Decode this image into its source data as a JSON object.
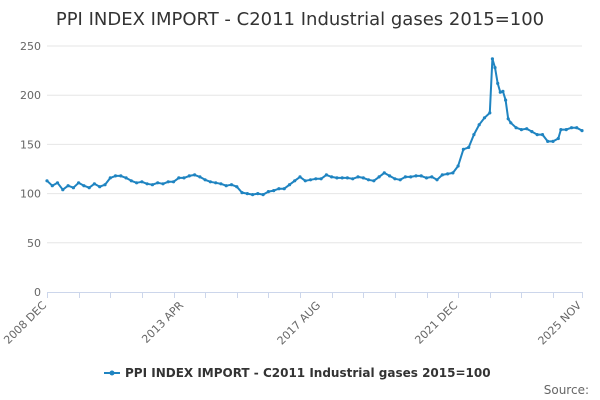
{
  "chart_data": {
    "type": "line",
    "title": "PPI INDEX IMPORT - C2011 Industrial gases 2015=100",
    "xlabel": "",
    "ylabel": "",
    "ylim": [
      0,
      250
    ],
    "y_ticks": [
      0,
      50,
      100,
      150,
      200,
      250
    ],
    "x_range": [
      "2008-12",
      "2025-11"
    ],
    "x_tick_labels": [
      {
        "date": "2008-12",
        "label": "2008 DEC"
      },
      {
        "date": "2013-04",
        "label": "2013 APR"
      },
      {
        "date": "2017-08",
        "label": "2017 AUG"
      },
      {
        "date": "2021-12",
        "label": "2021 DEC"
      },
      {
        "date": "2025-11",
        "label": "2025 NOV"
      }
    ],
    "grid": "horizontal",
    "legend_position": "bottom",
    "series": [
      {
        "name": "PPI INDEX IMPORT - C2011 Industrial gases 2015=100",
        "color": "#1f84c1",
        "points": [
          [
            "2008-12",
            113
          ],
          [
            "2009-02",
            108
          ],
          [
            "2009-04",
            111
          ],
          [
            "2009-06",
            104
          ],
          [
            "2009-08",
            108
          ],
          [
            "2009-10",
            106
          ],
          [
            "2009-12",
            111
          ],
          [
            "2010-02",
            108
          ],
          [
            "2010-04",
            106
          ],
          [
            "2010-06",
            110
          ],
          [
            "2010-08",
            107
          ],
          [
            "2010-10",
            109
          ],
          [
            "2010-12",
            116
          ],
          [
            "2011-02",
            118
          ],
          [
            "2011-04",
            118
          ],
          [
            "2011-06",
            116
          ],
          [
            "2011-08",
            113
          ],
          [
            "2011-10",
            111
          ],
          [
            "2011-12",
            112
          ],
          [
            "2012-02",
            110
          ],
          [
            "2012-04",
            109
          ],
          [
            "2012-06",
            111
          ],
          [
            "2012-08",
            110
          ],
          [
            "2012-10",
            112
          ],
          [
            "2012-12",
            112
          ],
          [
            "2013-02",
            116
          ],
          [
            "2013-04",
            116
          ],
          [
            "2013-06",
            118
          ],
          [
            "2013-08",
            119
          ],
          [
            "2013-10",
            117
          ],
          [
            "2013-12",
            114
          ],
          [
            "2014-02",
            112
          ],
          [
            "2014-04",
            111
          ],
          [
            "2014-06",
            110
          ],
          [
            "2014-08",
            108
          ],
          [
            "2014-10",
            109
          ],
          [
            "2014-12",
            107
          ],
          [
            "2015-02",
            101
          ],
          [
            "2015-04",
            100
          ],
          [
            "2015-06",
            99
          ],
          [
            "2015-08",
            100
          ],
          [
            "2015-10",
            99
          ],
          [
            "2015-12",
            102
          ],
          [
            "2016-02",
            103
          ],
          [
            "2016-04",
            105
          ],
          [
            "2016-06",
            105
          ],
          [
            "2016-08",
            109
          ],
          [
            "2016-10",
            113
          ],
          [
            "2016-12",
            117
          ],
          [
            "2017-02",
            113
          ],
          [
            "2017-04",
            114
          ],
          [
            "2017-06",
            115
          ],
          [
            "2017-08",
            115
          ],
          [
            "2017-10",
            119
          ],
          [
            "2017-12",
            117
          ],
          [
            "2018-02",
            116
          ],
          [
            "2018-04",
            116
          ],
          [
            "2018-06",
            116
          ],
          [
            "2018-08",
            115
          ],
          [
            "2018-10",
            117
          ],
          [
            "2018-12",
            116
          ],
          [
            "2019-02",
            114
          ],
          [
            "2019-04",
            113
          ],
          [
            "2019-06",
            117
          ],
          [
            "2019-08",
            121
          ],
          [
            "2019-10",
            118
          ],
          [
            "2019-12",
            115
          ],
          [
            "2020-02",
            114
          ],
          [
            "2020-04",
            117
          ],
          [
            "2020-06",
            117
          ],
          [
            "2020-08",
            118
          ],
          [
            "2020-10",
            118
          ],
          [
            "2020-12",
            116
          ],
          [
            "2021-02",
            117
          ],
          [
            "2021-04",
            114
          ],
          [
            "2021-06",
            119
          ],
          [
            "2021-08",
            120
          ],
          [
            "2021-10",
            121
          ],
          [
            "2021-12",
            128
          ],
          [
            "2022-02",
            145
          ],
          [
            "2022-04",
            147
          ],
          [
            "2022-06",
            160
          ],
          [
            "2022-08",
            170
          ],
          [
            "2022-10",
            177
          ],
          [
            "2022-12",
            182
          ],
          [
            "2023-01",
            237
          ],
          [
            "2023-02",
            228
          ],
          [
            "2023-03",
            212
          ],
          [
            "2023-04",
            203
          ],
          [
            "2023-05",
            204
          ],
          [
            "2023-06",
            195
          ],
          [
            "2023-07",
            176
          ],
          [
            "2023-08",
            172
          ],
          [
            "2023-10",
            167
          ],
          [
            "2023-12",
            165
          ],
          [
            "2024-02",
            166
          ],
          [
            "2024-04",
            163
          ],
          [
            "2024-06",
            160
          ],
          [
            "2024-08",
            160
          ],
          [
            "2024-10",
            153
          ],
          [
            "2024-12",
            153
          ],
          [
            "2025-02",
            156
          ],
          [
            "2025-03",
            165
          ],
          [
            "2025-05",
            165
          ],
          [
            "2025-07",
            167
          ],
          [
            "2025-09",
            167
          ],
          [
            "2025-11",
            164
          ]
        ]
      }
    ]
  },
  "footer": {
    "source_label": "Source:"
  }
}
